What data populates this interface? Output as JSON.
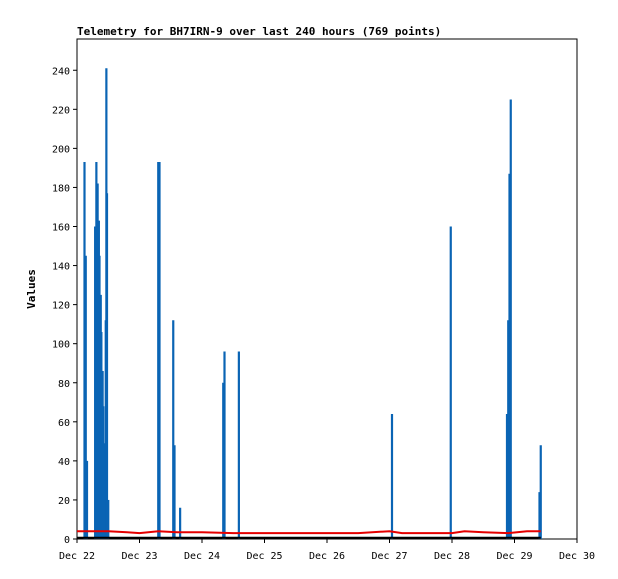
{
  "chart_data": {
    "type": "line",
    "title": "Telemetry for BH7IRN-9 over last 240 hours (769 points)",
    "xlabel": "",
    "ylabel": "Values",
    "x_ticks": [
      "Dec 22",
      "Dec 23",
      "Dec 24",
      "Dec 25",
      "Dec 26",
      "Dec 27",
      "Dec 28",
      "Dec 29",
      "Dec 30"
    ],
    "x_range_days": [
      0,
      8
    ],
    "y_ticks": [
      0,
      20,
      40,
      60,
      80,
      100,
      120,
      140,
      160,
      180,
      200,
      220,
      240
    ],
    "ylim": [
      0,
      256
    ],
    "grid": false,
    "legend": "none",
    "series": [
      {
        "color": "#0a64b4",
        "style": "spikes",
        "points": [
          [
            0.12,
            193
          ],
          [
            0.14,
            145
          ],
          [
            0.16,
            40
          ],
          [
            0.29,
            160
          ],
          [
            0.31,
            193
          ],
          [
            0.33,
            182
          ],
          [
            0.35,
            163
          ],
          [
            0.36,
            145
          ],
          [
            0.38,
            125
          ],
          [
            0.39,
            106
          ],
          [
            0.41,
            86
          ],
          [
            0.42,
            68
          ],
          [
            0.44,
            49
          ],
          [
            0.45,
            30
          ],
          [
            0.46,
            112
          ],
          [
            0.47,
            241
          ],
          [
            0.48,
            177
          ],
          [
            0.5,
            20
          ],
          [
            1.3,
            193
          ],
          [
            1.32,
            193
          ],
          [
            1.54,
            112
          ],
          [
            1.56,
            48
          ],
          [
            1.65,
            16
          ],
          [
            2.34,
            80
          ],
          [
            2.36,
            96
          ],
          [
            2.59,
            96
          ],
          [
            5.04,
            64
          ],
          [
            5.98,
            160
          ],
          [
            6.88,
            64
          ],
          [
            6.9,
            112
          ],
          [
            6.91,
            38
          ],
          [
            6.92,
            187
          ],
          [
            6.94,
            225
          ],
          [
            7.4,
            24
          ],
          [
            7.42,
            48
          ]
        ]
      },
      {
        "color": "#e60000",
        "style": "line",
        "points": [
          [
            0.0,
            4
          ],
          [
            0.2,
            4
          ],
          [
            0.5,
            4
          ],
          [
            0.8,
            3.5
          ],
          [
            1.0,
            3
          ],
          [
            1.3,
            4
          ],
          [
            1.6,
            3.5
          ],
          [
            2.0,
            3.5
          ],
          [
            2.5,
            3
          ],
          [
            3.0,
            3
          ],
          [
            3.5,
            3
          ],
          [
            4.0,
            3
          ],
          [
            4.5,
            3
          ],
          [
            5.0,
            4
          ],
          [
            5.2,
            3
          ],
          [
            5.6,
            3
          ],
          [
            6.0,
            3
          ],
          [
            6.2,
            4
          ],
          [
            6.5,
            3.5
          ],
          [
            6.9,
            3
          ],
          [
            7.2,
            4
          ],
          [
            7.42,
            4
          ]
        ]
      },
      {
        "color": "#000000",
        "style": "line",
        "points": [
          [
            0.0,
            0.6
          ],
          [
            7.42,
            0.6
          ]
        ]
      }
    ]
  }
}
